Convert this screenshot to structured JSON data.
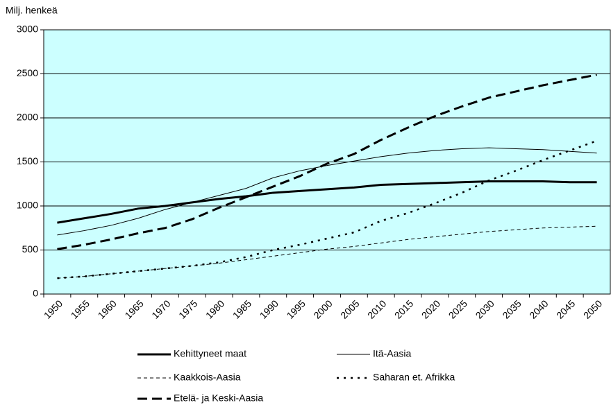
{
  "chart_data": {
    "type": "line",
    "y_axis_label": "Milj. henkeä",
    "categories": [
      "1950",
      "1955",
      "1960",
      "1965",
      "1970",
      "1975",
      "1980",
      "1985",
      "1990",
      "1995",
      "2000",
      "2005",
      "2010",
      "2015",
      "2020",
      "2025",
      "2030",
      "2035",
      "2040",
      "2045",
      "2050"
    ],
    "ylim": [
      0,
      3000
    ],
    "yticks": [
      0,
      500,
      1000,
      1500,
      2000,
      2500,
      3000
    ],
    "grid": true,
    "background": "#ccffff",
    "legend": "bottom",
    "series": [
      {
        "name": "Kehittyneet maat",
        "color": "#000000",
        "style": "thick",
        "values": [
          810,
          860,
          910,
          970,
          1000,
          1040,
          1080,
          1110,
          1150,
          1170,
          1190,
          1210,
          1240,
          1250,
          1260,
          1270,
          1280,
          1280,
          1280,
          1270,
          1270
        ]
      },
      {
        "name": "Itä-Aasia",
        "color": "#000000",
        "style": "thin",
        "values": [
          670,
          720,
          780,
          860,
          960,
          1040,
          1120,
          1200,
          1320,
          1400,
          1460,
          1510,
          1560,
          1600,
          1630,
          1650,
          1660,
          1650,
          1640,
          1620,
          1600
        ]
      },
      {
        "name": "Kaakkois-Aasia",
        "color": "#000000",
        "style": "dashed",
        "values": [
          180,
          200,
          230,
          260,
          290,
          320,
          350,
          390,
          430,
          470,
          510,
          540,
          580,
          620,
          650,
          680,
          710,
          730,
          750,
          760,
          770
        ]
      },
      {
        "name": "Saharan et. Afrikka",
        "color": "#000000",
        "style": "dotted",
        "values": [
          180,
          200,
          230,
          260,
          290,
          320,
          360,
          420,
          500,
          560,
          630,
          700,
          830,
          920,
          1030,
          1150,
          1290,
          1400,
          1520,
          1630,
          1740
        ]
      },
      {
        "name": "Etelä- ja Keski-Aasia",
        "color": "#000000",
        "style": "long-dash",
        "values": [
          510,
          560,
          620,
          690,
          750,
          850,
          980,
          1100,
          1220,
          1340,
          1480,
          1590,
          1750,
          1890,
          2020,
          2130,
          2230,
          2300,
          2370,
          2430,
          2490
        ]
      }
    ]
  }
}
